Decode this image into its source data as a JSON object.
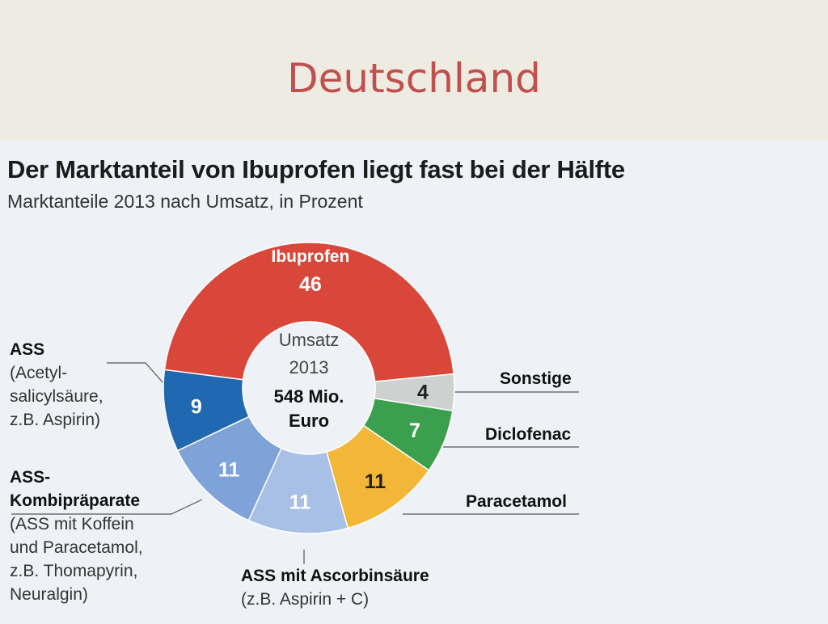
{
  "slide": {
    "title": "Deutschland"
  },
  "chart_data": {
    "type": "pie",
    "title": "Der Marktanteil von Ibuprofen liegt fast bei der Hälfte",
    "subtitle": "Marktanteile 2013 nach Umsatz, in Prozent",
    "center_text": [
      "Umsatz",
      "2013",
      "548 Mio.",
      "Euro"
    ],
    "unit": "Prozent",
    "slices": [
      {
        "name": "Ibuprofen",
        "value": 46,
        "color": "#d8473a",
        "label_inside": true
      },
      {
        "name": "Sonstige",
        "value": 4,
        "color": "#cfd1d1",
        "label_lines": []
      },
      {
        "name": "Diclofenac",
        "value": 7,
        "color": "#3aa04e",
        "label_lines": []
      },
      {
        "name": "Paracetamol",
        "value": 11,
        "color": "#f2b739",
        "label_lines": []
      },
      {
        "name": "ASS mit Ascorbinsäure",
        "value": 11,
        "color": "#a8bfe6",
        "label_lines": [
          "(z.B. Aspirin + C)"
        ]
      },
      {
        "name": "ASS-Kombipräparate",
        "value": 11,
        "color": "#7fa2d8",
        "label_lines": [
          "(ASS mit Koffein",
          "und Paracetamol,",
          "z.B. Thomapyrin,",
          "Neuralgin)"
        ]
      },
      {
        "name": "ASS",
        "value": 9,
        "color": "#2068b0",
        "label_lines": [
          "(Acetyl-",
          "salicylsäure,",
          "z.B. Aspirin)"
        ]
      }
    ],
    "label_colors": {
      "light": "#ffffff",
      "dark": "#222222"
    }
  }
}
